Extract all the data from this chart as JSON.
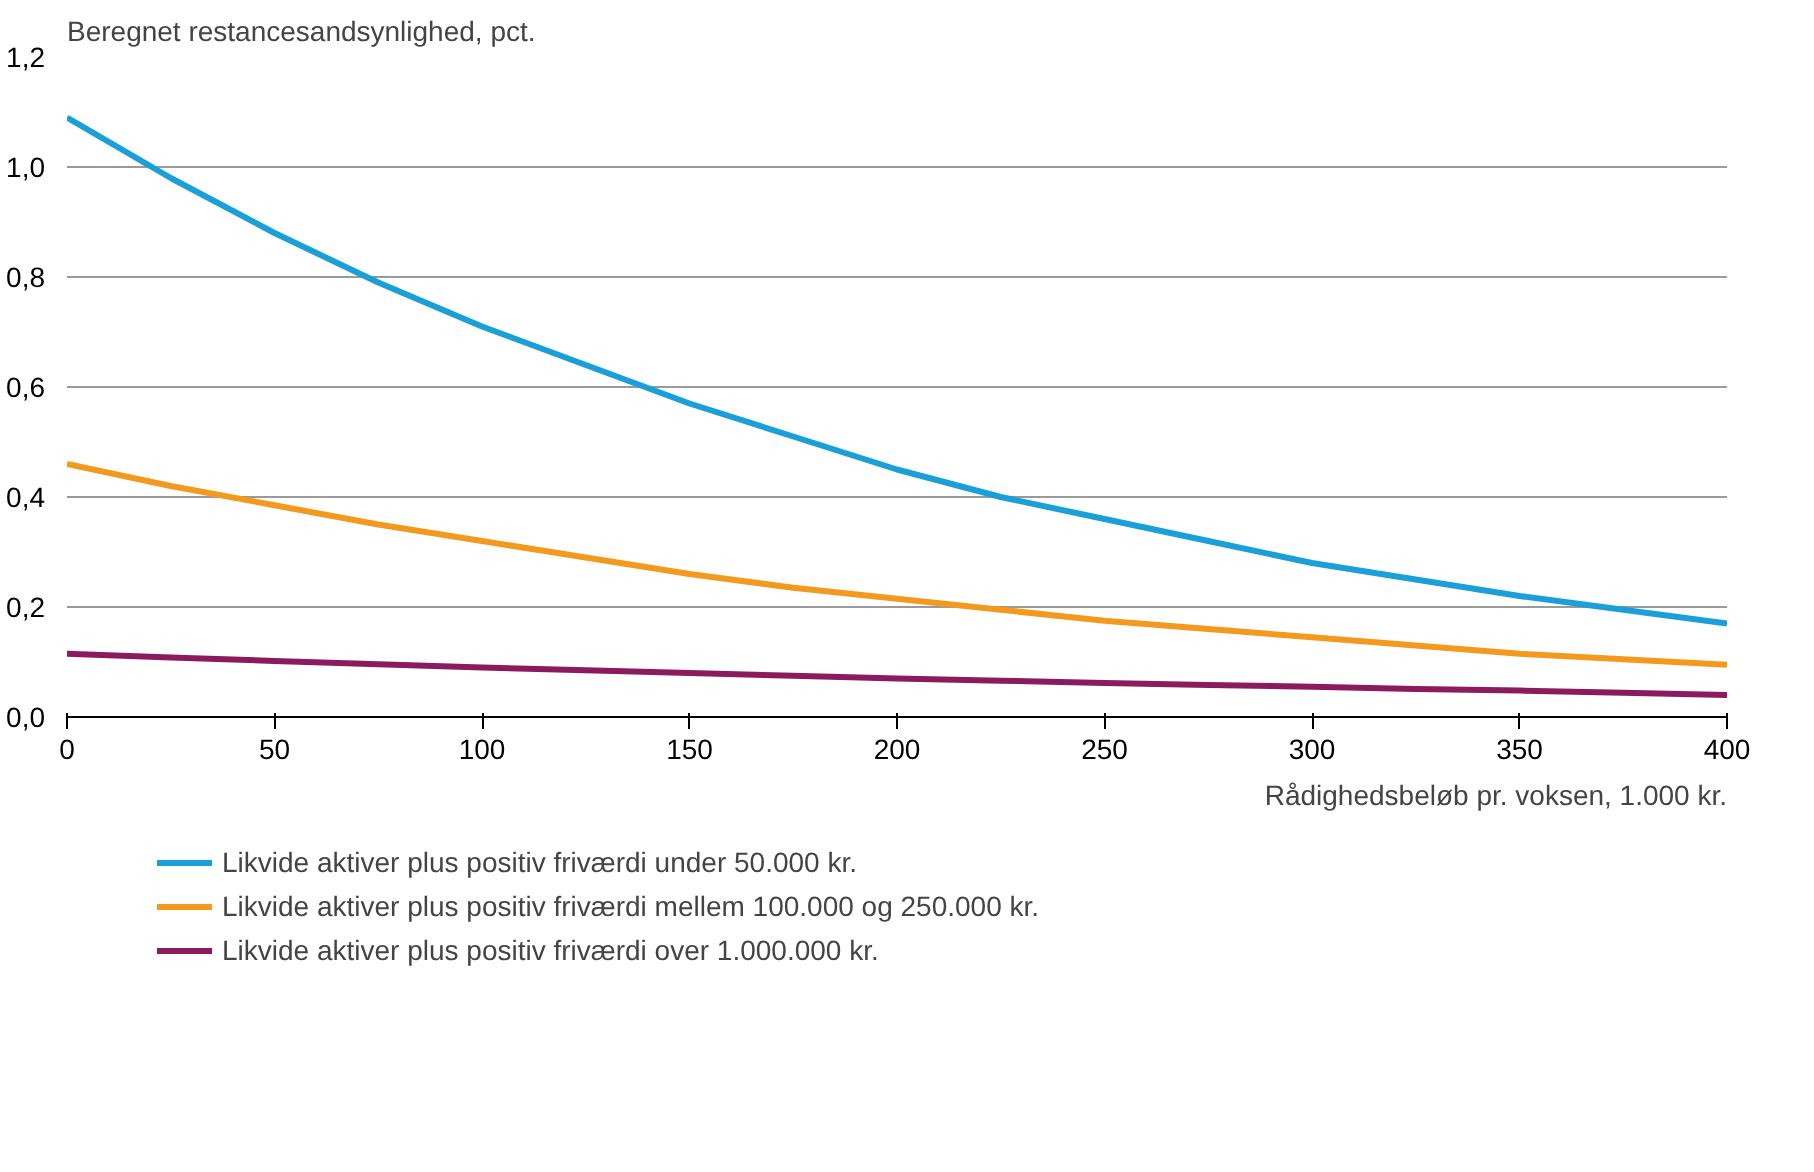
{
  "chart_data": {
    "type": "line",
    "ylabel": "Beregnet restancesandsynlighed, pct.",
    "xlabel": "Rådighedsbeløb pr. voksen, 1.000 kr.",
    "x": [
      0,
      25,
      50,
      75,
      100,
      125,
      150,
      175,
      200,
      225,
      250,
      275,
      300,
      325,
      350,
      375,
      400
    ],
    "series": [
      {
        "name": "Likvide aktiver plus positiv friværdi under 50.000 kr.",
        "color": "#1a9fd9",
        "values": [
          1.09,
          0.98,
          0.88,
          0.79,
          0.71,
          0.64,
          0.57,
          0.51,
          0.45,
          0.4,
          0.36,
          0.32,
          0.28,
          0.25,
          0.22,
          0.195,
          0.17
        ]
      },
      {
        "name": "Likvide aktiver plus positiv friværdi mellem 100.000 og 250.000 kr.",
        "color": "#f39a1e",
        "values": [
          0.46,
          0.42,
          0.385,
          0.35,
          0.32,
          0.29,
          0.26,
          0.235,
          0.215,
          0.195,
          0.175,
          0.16,
          0.145,
          0.13,
          0.115,
          0.105,
          0.095
        ]
      },
      {
        "name": "Likvide aktiver plus positiv friværdi over 1.000.000 kr.",
        "color": "#8b1a5e",
        "values": [
          0.115,
          0.108,
          0.102,
          0.096,
          0.09,
          0.085,
          0.08,
          0.075,
          0.07,
          0.066,
          0.062,
          0.058,
          0.055,
          0.051,
          0.048,
          0.044,
          0.04
        ]
      }
    ],
    "xlim": [
      0,
      400
    ],
    "xticks": [
      0,
      50,
      100,
      150,
      200,
      250,
      300,
      350,
      400
    ],
    "ylim": [
      0,
      1.2
    ],
    "yticks": [
      {
        "value": 0,
        "label": "0,0"
      },
      {
        "value": 0.2,
        "label": "0,2"
      },
      {
        "value": 0.4,
        "label": "0,4"
      },
      {
        "value": 0.6,
        "label": "0,6"
      },
      {
        "value": 0.8,
        "label": "0,8"
      },
      {
        "value": 1.0,
        "label": "1,0"
      },
      {
        "value": 1.2,
        "label": "1,2"
      }
    ],
    "grid": "y",
    "legend": "bottom",
    "marker": "none",
    "line_style": "solid"
  }
}
